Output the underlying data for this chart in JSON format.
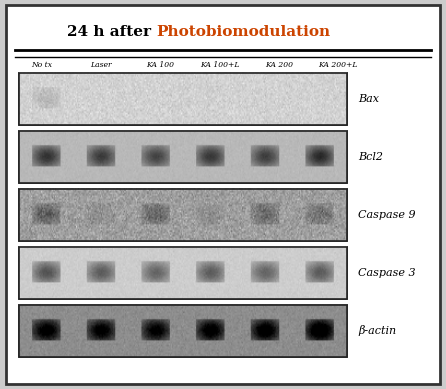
{
  "title": "24 h after Photobiomodulation",
  "title_black": "24 h after ",
  "title_orange": "Photobiomodulation",
  "lane_labels": [
    "No tx",
    "Laser",
    "KA 100",
    "KA 100+L",
    "KA 200",
    "KA 200+L"
  ],
  "row_labels": [
    "Bax",
    "Bcl2",
    "Caspase 9",
    "Caspase 3",
    "β-actin"
  ],
  "background_color": "#f0f0f0",
  "panel_bg": "#e8e8e8",
  "border_color": "#222222",
  "num_lanes": 6,
  "num_rows": 5,
  "band_data": {
    "Bax": {
      "intensities": [
        0.15,
        0.0,
        0.0,
        0.0,
        0.0,
        0.0
      ],
      "band_color": "#555555",
      "noise_level": 0.12,
      "bg_gray": 0.82
    },
    "Bcl2": {
      "intensities": [
        0.75,
        0.7,
        0.65,
        0.72,
        0.68,
        0.8
      ],
      "band_color": "#333333",
      "noise_level": 0.04,
      "bg_gray": 0.72
    },
    "Caspase 9": {
      "intensities": [
        0.35,
        0.1,
        0.3,
        0.1,
        0.3,
        0.25
      ],
      "band_color": "#555555",
      "noise_level": 0.2,
      "bg_gray": 0.62
    },
    "Caspase 3": {
      "intensities": [
        0.7,
        0.65,
        0.6,
        0.65,
        0.6,
        0.65
      ],
      "band_color": "#333333",
      "noise_level": 0.05,
      "bg_gray": 0.8
    },
    "β-actin": {
      "intensities": [
        0.85,
        0.82,
        0.8,
        0.85,
        0.88,
        0.95
      ],
      "band_color": "#111111",
      "noise_level": 0.08,
      "bg_gray": 0.55
    }
  }
}
